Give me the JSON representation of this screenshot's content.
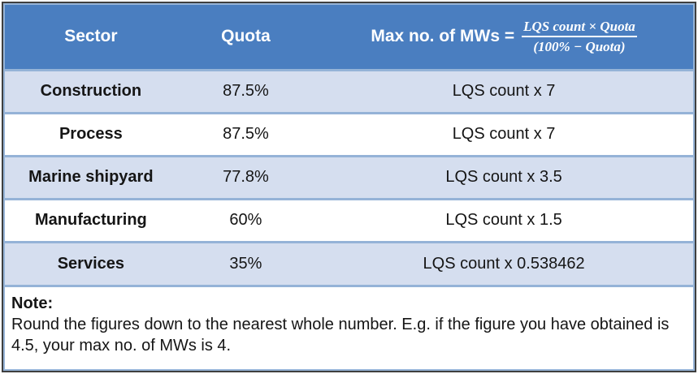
{
  "table": {
    "columns": [
      {
        "label": "Sector"
      },
      {
        "label": "Quota"
      },
      {
        "label": "Max no. of MWs =",
        "formula_numerator": "LQS count × Quota",
        "formula_denominator": "(100% − Quota)"
      }
    ],
    "rows": [
      {
        "sector": "Construction",
        "quota": "87.5%",
        "max_mws": "LQS count x 7"
      },
      {
        "sector": "Process",
        "quota": "87.5%",
        "max_mws": "LQS count x 7"
      },
      {
        "sector": "Marine shipyard",
        "quota": "77.8%",
        "max_mws": "LQS count x 3.5"
      },
      {
        "sector": "Manufacturing",
        "quota": "60%",
        "max_mws": "LQS count x 1.5"
      },
      {
        "sector": "Services",
        "quota": "35%",
        "max_mws": "LQS count x 0.538462"
      }
    ]
  },
  "note": {
    "label": "Note:",
    "text": "Round the figures down to the nearest whole number. E.g. if the figure you have obtained is 4.5, your max no. of MWs is 4."
  },
  "colors": {
    "header_bg": "#4A7EC0",
    "row_alt_bg": "#D5DEEF",
    "row_bg": "#FFFFFF",
    "divider": "#95B3D7",
    "frame": "#3F3F3F",
    "header_text": "#FFFFFF",
    "body_text": "#151515"
  }
}
